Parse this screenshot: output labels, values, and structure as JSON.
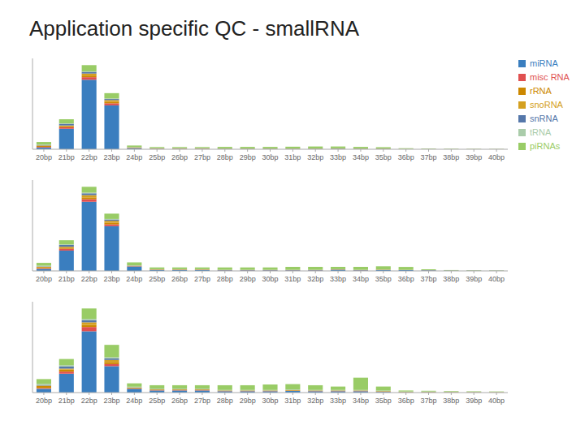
{
  "chart_data": [
    {
      "type": "bar",
      "title": "Application specific QC - smallRNA",
      "stacked": true,
      "grid": false,
      "legend": "right",
      "tick_labels": "x",
      "categories": [
        "20bp",
        "21bp",
        "22bp",
        "23bp",
        "24bp",
        "25bp",
        "26bp",
        "27bp",
        "28bp",
        "29bp",
        "30bp",
        "31bp",
        "32bp",
        "33bp",
        "34bp",
        "35bp",
        "36bp",
        "37bp",
        "38bp",
        "39bp",
        "40bp"
      ],
      "ylim": [
        0,
        12.42
      ],
      "series": [
        {
          "name": "miRNA",
          "color": "#3a7ebf",
          "values": [
            0.25,
            2.8,
            9.5,
            6.0,
            0.15,
            0.05,
            0.05,
            0.05,
            0.03,
            0.03,
            0.03,
            0.03,
            0.03,
            0.06,
            0.03,
            0.03,
            0.01,
            0.01,
            0.005,
            0.005,
            0.005
          ]
        },
        {
          "name": "misc RNA",
          "color": "#e05050",
          "values": [
            0.08,
            0.2,
            0.35,
            0.28,
            0.03,
            0.03,
            0.03,
            0.03,
            0.02,
            0.02,
            0.02,
            0.02,
            0.02,
            0.02,
            0.02,
            0.02,
            0.01,
            0.01,
            0.005,
            0.005,
            0.005
          ]
        },
        {
          "name": "rRNA",
          "color": "#cc8800",
          "values": [
            0.15,
            0.15,
            0.22,
            0.22,
            0.03,
            0.03,
            0.03,
            0.03,
            0.02,
            0.02,
            0.02,
            0.02,
            0.02,
            0.02,
            0.02,
            0.02,
            0.01,
            0.01,
            0.005,
            0.005,
            0.005
          ]
        },
        {
          "name": "snoRNA",
          "color": "#d4a020",
          "values": [
            0.04,
            0.1,
            0.28,
            0.22,
            0.03,
            0.02,
            0.02,
            0.02,
            0.01,
            0.01,
            0.01,
            0.01,
            0.01,
            0.01,
            0.01,
            0.01,
            0.005,
            0.005,
            0.003,
            0.003,
            0.003
          ]
        },
        {
          "name": "snRNA",
          "color": "#5577aa",
          "values": [
            0.04,
            0.22,
            0.22,
            0.15,
            0.02,
            0.01,
            0.01,
            0.01,
            0.008,
            0.008,
            0.008,
            0.008,
            0.008,
            0.008,
            0.008,
            0.008,
            0.0,
            0.0,
            0.0,
            0.0,
            0.0
          ]
        },
        {
          "name": "tRNA",
          "color": "#aaccaa",
          "values": [
            0.08,
            0.08,
            0.08,
            0.08,
            0.03,
            0.02,
            0.02,
            0.02,
            0.01,
            0.01,
            0.01,
            0.01,
            0.01,
            0.01,
            0.01,
            0.01,
            0.005,
            0.005,
            0.003,
            0.003,
            0.003
          ]
        },
        {
          "name": "piRNAs",
          "color": "#99cc66",
          "values": [
            0.35,
            0.55,
            0.85,
            0.72,
            0.22,
            0.14,
            0.14,
            0.14,
            0.22,
            0.22,
            0.22,
            0.25,
            0.28,
            0.25,
            0.22,
            0.18,
            0.1,
            0.07,
            0.055,
            0.04,
            0.028
          ]
        }
      ]
    },
    {
      "type": "bar",
      "stacked": true,
      "grid": false,
      "tick_labels": "x",
      "categories": [
        "20bp",
        "21bp",
        "22bp",
        "23bp",
        "24bp",
        "25bp",
        "26bp",
        "27bp",
        "28bp",
        "29bp",
        "30bp",
        "31bp",
        "32bp",
        "33bp",
        "34bp",
        "35bp",
        "36bp",
        "37bp",
        "38bp",
        "39bp",
        "40bp"
      ],
      "ylim": [
        0,
        11.1672
      ],
      "series": [
        {
          "name": "miRNA",
          "color": "#3a7ebf",
          "values": [
            0.25,
            2.5,
            8.5,
            5.5,
            0.55,
            0.1,
            0.1,
            0.1,
            0.07,
            0.07,
            0.07,
            0.07,
            0.07,
            0.14,
            0.07,
            0.1,
            0.1,
            0.07,
            0.035,
            0.028,
            0.02
          ]
        },
        {
          "name": "misc RNA",
          "color": "#e05050",
          "values": [
            0.08,
            0.22,
            0.32,
            0.22,
            0.03,
            0.03,
            0.03,
            0.03,
            0.02,
            0.02,
            0.02,
            0.02,
            0.02,
            0.02,
            0.02,
            0.02,
            0.01,
            0.01,
            0.005,
            0.005,
            0.005
          ]
        },
        {
          "name": "rRNA",
          "color": "#cc8800",
          "values": [
            0.15,
            0.15,
            0.22,
            0.22,
            0.03,
            0.03,
            0.03,
            0.03,
            0.02,
            0.02,
            0.02,
            0.02,
            0.02,
            0.02,
            0.02,
            0.02,
            0.01,
            0.01,
            0.005,
            0.005,
            0.005
          ]
        },
        {
          "name": "snoRNA",
          "color": "#d4a020",
          "values": [
            0.04,
            0.1,
            0.28,
            0.22,
            0.03,
            0.02,
            0.02,
            0.02,
            0.01,
            0.01,
            0.01,
            0.01,
            0.01,
            0.01,
            0.01,
            0.01,
            0.005,
            0.005,
            0.003,
            0.003,
            0.003
          ]
        },
        {
          "name": "snRNA",
          "color": "#5577aa",
          "values": [
            0.04,
            0.22,
            0.22,
            0.15,
            0.02,
            0.01,
            0.01,
            0.01,
            0.008,
            0.008,
            0.008,
            0.008,
            0.008,
            0.008,
            0.008,
            0.008,
            0.0,
            0.0,
            0.0,
            0.0,
            0.0
          ]
        },
        {
          "name": "tRNA",
          "color": "#aaccaa",
          "values": [
            0.08,
            0.08,
            0.08,
            0.08,
            0.03,
            0.02,
            0.02,
            0.02,
            0.01,
            0.01,
            0.01,
            0.01,
            0.01,
            0.01,
            0.01,
            0.01,
            0.005,
            0.005,
            0.003,
            0.003,
            0.003
          ]
        },
        {
          "name": "piRNAs",
          "color": "#99cc66",
          "values": [
            0.35,
            0.5,
            0.72,
            0.65,
            0.36,
            0.22,
            0.22,
            0.22,
            0.29,
            0.29,
            0.29,
            0.36,
            0.36,
            0.29,
            0.36,
            0.4,
            0.36,
            0.1,
            0.055,
            0.04,
            0.028
          ]
        }
      ]
    },
    {
      "type": "bar",
      "stacked": true,
      "grid": false,
      "tick_labels": "x",
      "categories": [
        "20bp",
        "21bp",
        "22bp",
        "23bp",
        "24bp",
        "25bp",
        "26bp",
        "27bp",
        "28bp",
        "29bp",
        "30bp",
        "31bp",
        "32bp",
        "33bp",
        "34bp",
        "35bp",
        "36bp",
        "37bp",
        "38bp",
        "39bp",
        "40bp"
      ],
      "ylim": [
        0,
        9.6336
      ],
      "series": [
        {
          "name": "miRNA",
          "color": "#3a7ebf",
          "values": [
            0.4,
            2.0,
            6.5,
            2.8,
            0.4,
            0.22,
            0.22,
            0.22,
            0.14,
            0.14,
            0.14,
            0.18,
            0.14,
            0.14,
            0.14,
            0.07,
            0.035,
            0.035,
            0.028,
            0.02,
            0.014
          ]
        },
        {
          "name": "misc RNA",
          "color": "#e05050",
          "values": [
            0.08,
            0.22,
            0.45,
            0.22,
            0.03,
            0.03,
            0.03,
            0.03,
            0.02,
            0.02,
            0.02,
            0.02,
            0.02,
            0.02,
            0.02,
            0.02,
            0.01,
            0.01,
            0.005,
            0.005,
            0.005
          ]
        },
        {
          "name": "rRNA",
          "color": "#cc8800",
          "values": [
            0.22,
            0.22,
            0.22,
            0.22,
            0.07,
            0.07,
            0.07,
            0.07,
            0.05,
            0.05,
            0.05,
            0.05,
            0.05,
            0.05,
            0.05,
            0.05,
            0.035,
            0.035,
            0.035,
            0.035,
            0.035
          ]
        },
        {
          "name": "snoRNA",
          "color": "#d4a020",
          "values": [
            0.04,
            0.1,
            0.28,
            0.22,
            0.03,
            0.02,
            0.02,
            0.02,
            0.01,
            0.01,
            0.01,
            0.01,
            0.01,
            0.01,
            0.01,
            0.01,
            0.005,
            0.005,
            0.003,
            0.003,
            0.003
          ]
        },
        {
          "name": "snRNA",
          "color": "#5577aa",
          "values": [
            0.04,
            0.22,
            0.22,
            0.15,
            0.02,
            0.01,
            0.01,
            0.01,
            0.008,
            0.008,
            0.008,
            0.008,
            0.008,
            0.008,
            0.008,
            0.008,
            0.0,
            0.0,
            0.0,
            0.0,
            0.0
          ]
        },
        {
          "name": "tRNA",
          "color": "#aaccaa",
          "values": [
            0.15,
            0.15,
            0.15,
            0.15,
            0.07,
            0.07,
            0.07,
            0.07,
            0.05,
            0.05,
            0.05,
            0.05,
            0.05,
            0.05,
            0.05,
            0.05,
            0.035,
            0.035,
            0.035,
            0.035,
            0.035
          ]
        },
        {
          "name": "piRNAs",
          "color": "#99cc66",
          "values": [
            0.5,
            0.65,
            1.1,
            1.3,
            0.36,
            0.36,
            0.36,
            0.36,
            0.5,
            0.5,
            0.58,
            0.58,
            0.5,
            0.36,
            1.3,
            0.43,
            0.1,
            0.07,
            0.055,
            0.04,
            0.028
          ]
        }
      ]
    }
  ]
}
